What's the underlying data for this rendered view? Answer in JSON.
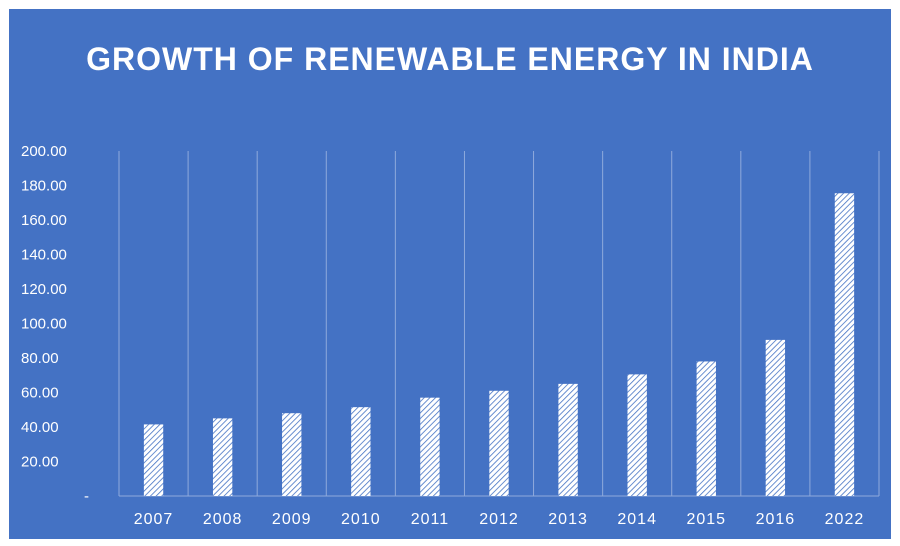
{
  "chart_data": {
    "type": "bar",
    "title": "GROWTH OF RENEWABLE ENERGY IN INDIA",
    "xlabel": "",
    "ylabel": "",
    "categories": [
      "2007",
      "2008",
      "2009",
      "2010",
      "2011",
      "2012",
      "2013",
      "2014",
      "2015",
      "2016",
      "2022"
    ],
    "values": [
      41.5,
      45.0,
      48.0,
      51.5,
      57.0,
      61.0,
      65.0,
      70.5,
      78.0,
      90.5,
      175.5
    ],
    "ylim": [
      0,
      200
    ],
    "yticks": [
      0,
      20,
      40,
      60,
      80,
      100,
      120,
      140,
      160,
      180,
      200
    ],
    "ytick_labels": [
      "-",
      "20.00",
      "40.00",
      "60.00",
      "80.00",
      "100.00",
      "120.00",
      "140.00",
      "160.00",
      "180.00",
      "200.00"
    ],
    "grid": "vertical",
    "legend": "none",
    "colors": {
      "background": "#4472c4",
      "bar_fill": "#ffffff",
      "bar_hatch": "#4472c4",
      "gridline": "#8faadc",
      "text": "#ffffff"
    }
  }
}
